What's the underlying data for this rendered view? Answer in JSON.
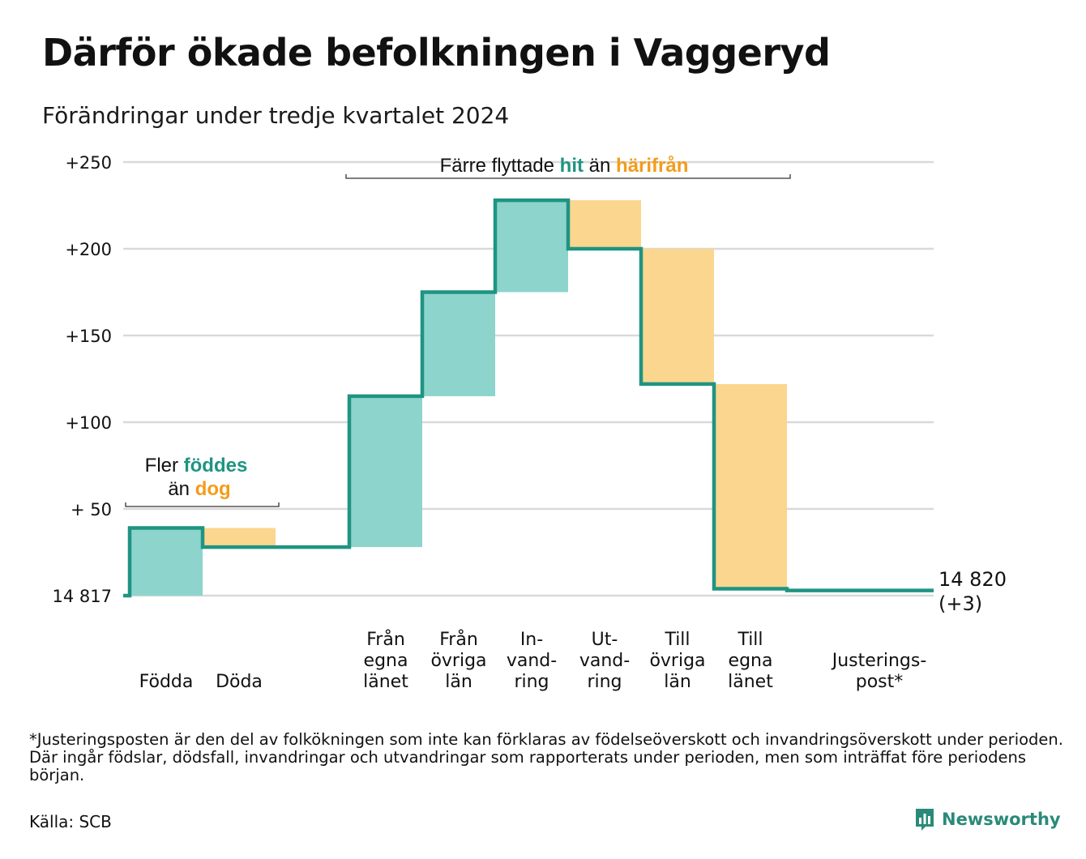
{
  "title": "Därför ökade befolkningen i Vaggeryd",
  "subtitle": "Förändringar under tredje kvartalet 2024",
  "chart_data": {
    "type": "waterfall",
    "base_label": "14 817",
    "base_value": 14817,
    "end_label_line1": "14 820",
    "end_label_line2": "(+3)",
    "ylim": [
      0,
      250
    ],
    "yticks": [
      {
        "value": 0,
        "label": "14 817"
      },
      {
        "value": 50,
        "label": "+ 50"
      },
      {
        "value": 100,
        "label": "+100"
      },
      {
        "value": 150,
        "label": "+150"
      },
      {
        "value": 200,
        "label": "+200"
      },
      {
        "value": 250,
        "label": "+250"
      }
    ],
    "steps": [
      {
        "lines": [
          "Födda"
        ],
        "change": 39,
        "kind": "inflow"
      },
      {
        "lines": [
          "Döda"
        ],
        "change": -11,
        "kind": "outflow"
      },
      {
        "lines": [
          "Från",
          "egna",
          "länet"
        ],
        "change": 87,
        "kind": "inflow"
      },
      {
        "lines": [
          "Från",
          "övriga",
          "län"
        ],
        "change": 60,
        "kind": "inflow"
      },
      {
        "lines": [
          "In-",
          "vand-",
          "ring"
        ],
        "change": 53,
        "kind": "inflow"
      },
      {
        "lines": [
          "Ut-",
          "vand-",
          "ring"
        ],
        "change": -28,
        "kind": "outflow"
      },
      {
        "lines": [
          "Till",
          "övriga",
          "län"
        ],
        "change": -78,
        "kind": "outflow"
      },
      {
        "lines": [
          "Till",
          "egna",
          "länet"
        ],
        "change": -118,
        "kind": "outflow"
      },
      {
        "lines": [
          "Justerings-",
          "post*"
        ],
        "change": -1,
        "kind": "adjustment"
      }
    ],
    "annotations": [
      {
        "line1_parts": [
          {
            "text": "Fler ",
            "style": "plain"
          },
          {
            "text": "föddes",
            "style": "in"
          }
        ],
        "line2_parts": [
          {
            "text": "än ",
            "style": "plain"
          },
          {
            "text": "dog",
            "style": "out"
          }
        ]
      },
      {
        "line1_parts": [
          {
            "text": "Färre flyttade ",
            "style": "plain"
          },
          {
            "text": "hit",
            "style": "in"
          },
          {
            "text": " än ",
            "style": "plain"
          },
          {
            "text": "härifrån",
            "style": "out"
          }
        ]
      }
    ],
    "colors": {
      "inflow_fill": "#8dd4cc",
      "outflow_fill": "#fad68e",
      "line": "#1f9482",
      "in_text": "#1f9482",
      "out_text": "#f39c1b",
      "grid": "#d9d9d9"
    }
  },
  "footnote": "*Justeringsposten är den del av folkökningen som inte kan förklaras av födelseöverskott och invandringsöverskott under perioden. Där ingår födslar, dödsfall, invandringar och utvandringar som rapporterats under perioden, men som inträffat före periodens början.",
  "source": "Källa: SCB",
  "brand": {
    "name": "Newsworthy",
    "icon": "bar-chart-logo-icon"
  }
}
